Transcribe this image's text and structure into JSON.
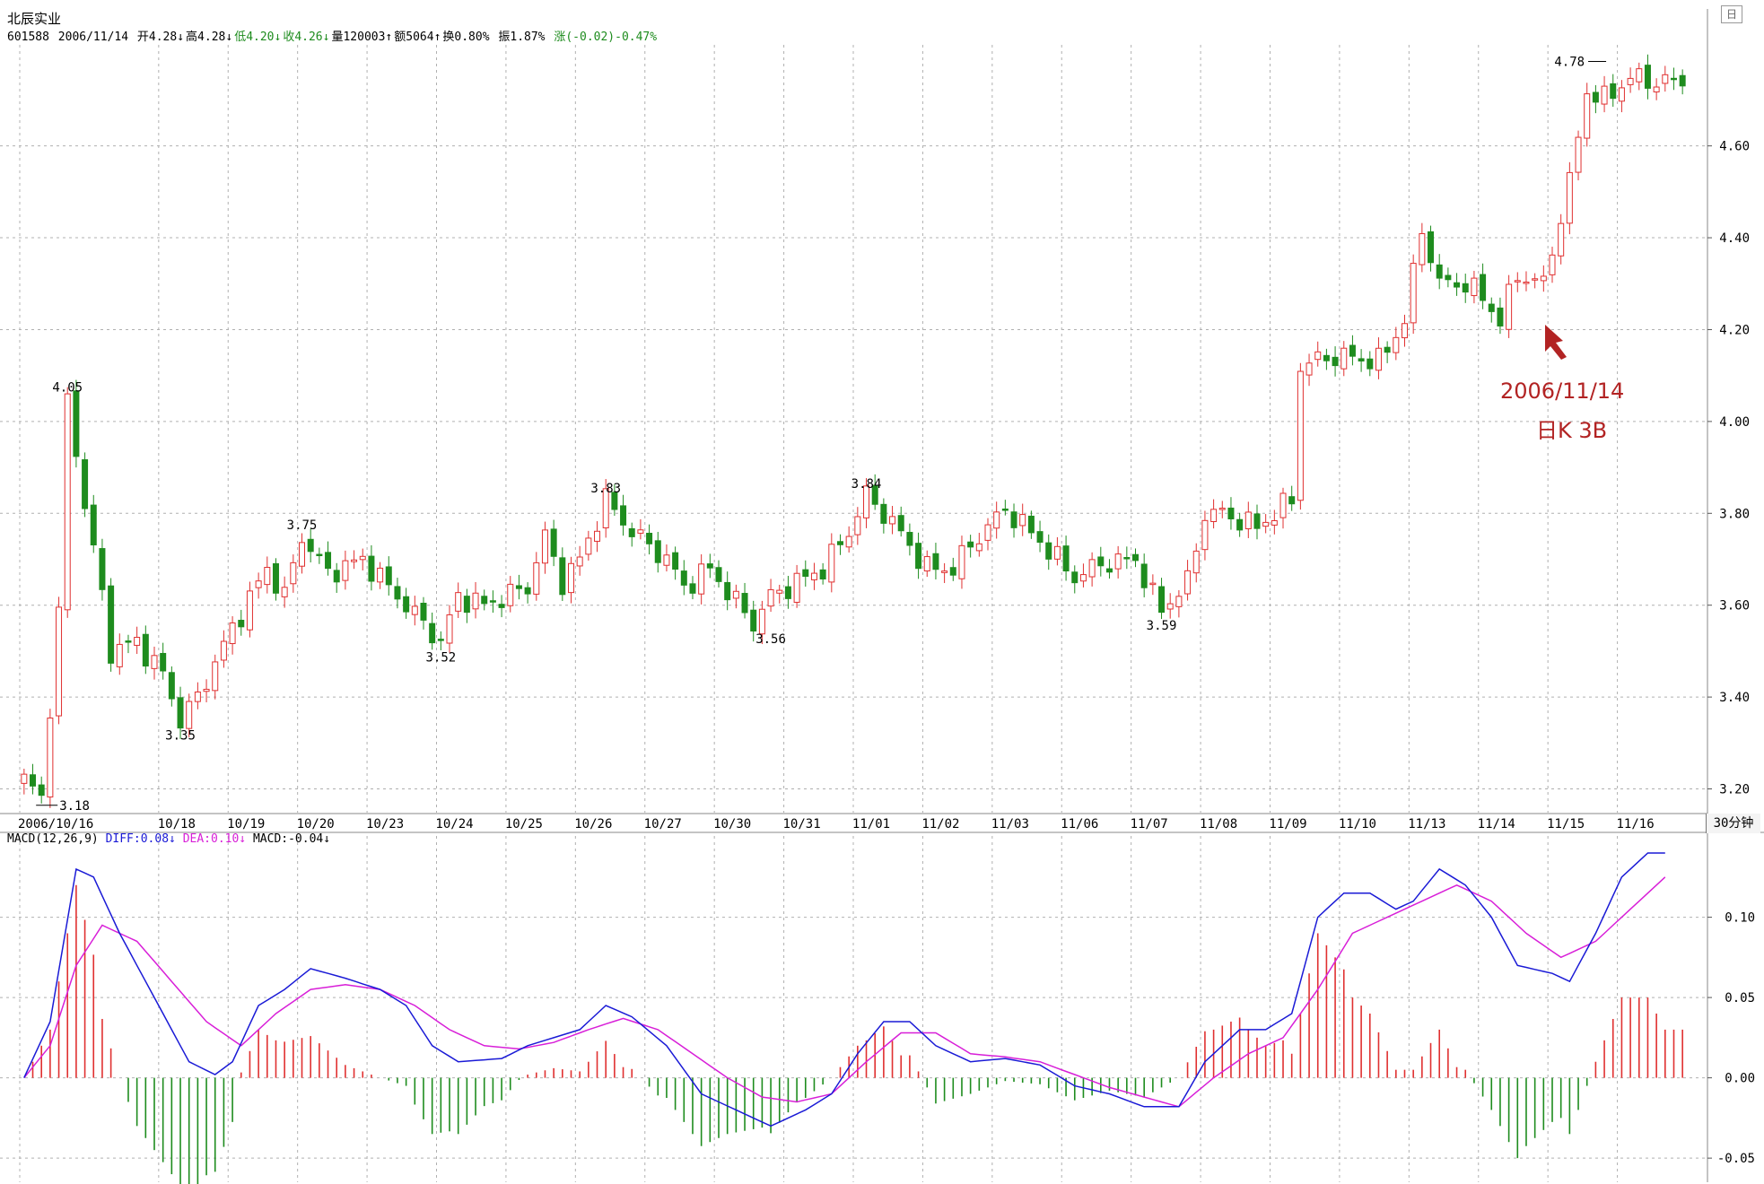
{
  "header": {
    "stock_name": "北辰实业",
    "quote": {
      "code": "601588",
      "date": "2006/11/14",
      "open": "开4.28↓",
      "high": "高4.28↓",
      "low": "低4.20↓",
      "close": "收4.26↓",
      "volume": "量120003↑",
      "amount": "额5064↑",
      "turnover": "换0.80%",
      "amplitude": "振1.87%",
      "change": "涨(-0.02)-0.47%"
    }
  },
  "period_button": "30分钟",
  "corner_button": "日",
  "macd_header": {
    "name": "MACD(12,26,9)",
    "diff": "DIFF:0.08↓",
    "dea": "DEA:0.10↓",
    "macd": "MACD:-0.04↓"
  },
  "annotation": {
    "date": "2006/11/14",
    "note": "日K 3B"
  },
  "colors": {
    "up": "#e03030",
    "down": "#1e8c1e",
    "diff": "#1a1ad6",
    "dea": "#d81fd8",
    "grid": "#b0b0b0",
    "annotation": "#b22323"
  },
  "chart_data": [
    {
      "type": "candlestick",
      "title": "北辰实业",
      "interval": "30分钟",
      "ylim": [
        3.16,
        4.82
      ],
      "y_ticks": [
        "3.20",
        "3.40",
        "3.60",
        "3.80",
        "4.00",
        "4.20",
        "4.40",
        "4.60"
      ],
      "x_labels": [
        "2006/10/16",
        "10/18",
        "10/19",
        "10/20",
        "10/23",
        "10/24",
        "10/25",
        "10/26",
        "10/27",
        "10/30",
        "10/31",
        "11/01",
        "11/02",
        "11/03",
        "11/06",
        "11/07",
        "11/08",
        "11/09",
        "11/10",
        "11/13",
        "11/14",
        "11/15",
        "11/16"
      ],
      "x_label_bar_index": [
        0,
        16,
        24,
        32,
        40,
        48,
        56,
        64,
        72,
        80,
        88,
        96,
        104,
        112,
        120,
        128,
        136,
        144,
        152,
        160,
        168,
        176,
        184
      ],
      "bar_count": 192,
      "price_anchors": [
        [
          0,
          3.22
        ],
        [
          2,
          3.18
        ],
        [
          4,
          3.58
        ],
        [
          5,
          4.05
        ],
        [
          7,
          3.82
        ],
        [
          9,
          3.62
        ],
        [
          10,
          3.5
        ],
        [
          13,
          3.52
        ],
        [
          16,
          3.45
        ],
        [
          18,
          3.35
        ],
        [
          20,
          3.4
        ],
        [
          24,
          3.55
        ],
        [
          28,
          3.68
        ],
        [
          30,
          3.62
        ],
        [
          32,
          3.75
        ],
        [
          35,
          3.67
        ],
        [
          39,
          3.7
        ],
        [
          43,
          3.62
        ],
        [
          48,
          3.52
        ],
        [
          50,
          3.62
        ],
        [
          53,
          3.6
        ],
        [
          58,
          3.64
        ],
        [
          60,
          3.75
        ],
        [
          62,
          3.65
        ],
        [
          64,
          3.7
        ],
        [
          67,
          3.83
        ],
        [
          70,
          3.76
        ],
        [
          74,
          3.7
        ],
        [
          76,
          3.64
        ],
        [
          79,
          3.68
        ],
        [
          81,
          3.63
        ],
        [
          84,
          3.56
        ],
        [
          86,
          3.62
        ],
        [
          89,
          3.65
        ],
        [
          92,
          3.68
        ],
        [
          95,
          3.76
        ],
        [
          97,
          3.84
        ],
        [
          100,
          3.78
        ],
        [
          104,
          3.68
        ],
        [
          107,
          3.68
        ],
        [
          109,
          3.73
        ],
        [
          113,
          3.81
        ],
        [
          117,
          3.74
        ],
        [
          121,
          3.66
        ],
        [
          124,
          3.69
        ],
        [
          128,
          3.7
        ],
        [
          130,
          3.62
        ],
        [
          131,
          3.59
        ],
        [
          134,
          3.65
        ],
        [
          136,
          3.8
        ],
        [
          138,
          3.8
        ],
        [
          142,
          3.77
        ],
        [
          146,
          3.83
        ],
        [
          147,
          4.12
        ],
        [
          150,
          4.14
        ],
        [
          153,
          4.14
        ],
        [
          156,
          4.13
        ],
        [
          159,
          4.22
        ],
        [
          161,
          4.42
        ],
        [
          163,
          4.3
        ],
        [
          166,
          4.3
        ],
        [
          168,
          4.27
        ],
        [
          170,
          4.22
        ],
        [
          172,
          4.32
        ],
        [
          175,
          4.3
        ],
        [
          178,
          4.52
        ],
        [
          180,
          4.72
        ],
        [
          182,
          4.7
        ],
        [
          185,
          4.75
        ],
        [
          187,
          4.74
        ]
      ],
      "labels": [
        {
          "bar": 2,
          "price": 3.18,
          "text": "3.18"
        },
        {
          "bar": 5,
          "price": 4.05,
          "text": "4.05"
        },
        {
          "bar": 18,
          "price": 3.35,
          "text": "3.35"
        },
        {
          "bar": 32,
          "price": 3.75,
          "text": "3.75"
        },
        {
          "bar": 48,
          "price": 3.52,
          "text": "3.52"
        },
        {
          "bar": 67,
          "price": 3.83,
          "text": "3.83"
        },
        {
          "bar": 86,
          "price": 3.56,
          "text": "3.56"
        },
        {
          "bar": 97,
          "price": 3.84,
          "text": "3.84"
        },
        {
          "bar": 131,
          "price": 3.59,
          "text": "3.59"
        },
        {
          "bar": 182,
          "price": 4.78,
          "text": "4.78"
        }
      ]
    },
    {
      "type": "line",
      "title": "MACD(12,26,9)",
      "ylim": [
        -0.065,
        0.145
      ],
      "y_ticks": [
        "-0.05",
        "0.00",
        "0.05",
        "0.10"
      ],
      "series": [
        {
          "name": "DIFF",
          "anchors": [
            [
              0,
              0.0
            ],
            [
              3,
              0.035
            ],
            [
              6,
              0.13
            ],
            [
              8,
              0.125
            ],
            [
              11,
              0.09
            ],
            [
              15,
              0.05
            ],
            [
              19,
              0.01
            ],
            [
              22,
              0.002
            ],
            [
              24,
              0.01
            ],
            [
              27,
              0.045
            ],
            [
              30,
              0.055
            ],
            [
              33,
              0.068
            ],
            [
              37,
              0.062
            ],
            [
              41,
              0.055
            ],
            [
              44,
              0.045
            ],
            [
              47,
              0.02
            ],
            [
              50,
              0.01
            ],
            [
              55,
              0.012
            ],
            [
              58,
              0.02
            ],
            [
              61,
              0.025
            ],
            [
              64,
              0.03
            ],
            [
              67,
              0.045
            ],
            [
              70,
              0.038
            ],
            [
              74,
              0.02
            ],
            [
              78,
              -0.01
            ],
            [
              82,
              -0.02
            ],
            [
              86,
              -0.03
            ],
            [
              90,
              -0.02
            ],
            [
              93,
              -0.01
            ],
            [
              96,
              0.015
            ],
            [
              99,
              0.035
            ],
            [
              102,
              0.035
            ],
            [
              105,
              0.02
            ],
            [
              109,
              0.01
            ],
            [
              113,
              0.012
            ],
            [
              117,
              0.008
            ],
            [
              121,
              -0.005
            ],
            [
              125,
              -0.01
            ],
            [
              129,
              -0.018
            ],
            [
              133,
              -0.018
            ],
            [
              136,
              0.01
            ],
            [
              140,
              0.03
            ],
            [
              143,
              0.03
            ],
            [
              146,
              0.04
            ],
            [
              149,
              0.1
            ],
            [
              152,
              0.115
            ],
            [
              155,
              0.115
            ],
            [
              158,
              0.105
            ],
            [
              160,
              0.11
            ],
            [
              163,
              0.13
            ],
            [
              166,
              0.12
            ],
            [
              169,
              0.1
            ],
            [
              172,
              0.07
            ],
            [
              176,
              0.065
            ],
            [
              178,
              0.06
            ],
            [
              181,
              0.09
            ],
            [
              184,
              0.125
            ],
            [
              187,
              0.14
            ],
            [
              189,
              0.14
            ]
          ]
        },
        {
          "name": "DEA",
          "anchors": [
            [
              0,
              0.0
            ],
            [
              3,
              0.02
            ],
            [
              6,
              0.07
            ],
            [
              9,
              0.095
            ],
            [
              13,
              0.085
            ],
            [
              17,
              0.06
            ],
            [
              21,
              0.035
            ],
            [
              25,
              0.02
            ],
            [
              29,
              0.04
            ],
            [
              33,
              0.055
            ],
            [
              37,
              0.058
            ],
            [
              41,
              0.055
            ],
            [
              45,
              0.045
            ],
            [
              49,
              0.03
            ],
            [
              53,
              0.02
            ],
            [
              57,
              0.018
            ],
            [
              61,
              0.022
            ],
            [
              65,
              0.03
            ],
            [
              69,
              0.037
            ],
            [
              73,
              0.03
            ],
            [
              77,
              0.015
            ],
            [
              81,
              0.0
            ],
            [
              85,
              -0.012
            ],
            [
              89,
              -0.015
            ],
            [
              93,
              -0.01
            ],
            [
              97,
              0.01
            ],
            [
              101,
              0.028
            ],
            [
              105,
              0.028
            ],
            [
              109,
              0.015
            ],
            [
              113,
              0.013
            ],
            [
              117,
              0.01
            ],
            [
              121,
              0.002
            ],
            [
              125,
              -0.006
            ],
            [
              129,
              -0.012
            ],
            [
              133,
              -0.018
            ],
            [
              137,
              0.0
            ],
            [
              141,
              0.015
            ],
            [
              145,
              0.025
            ],
            [
              149,
              0.055
            ],
            [
              153,
              0.09
            ],
            [
              157,
              0.1
            ],
            [
              161,
              0.11
            ],
            [
              165,
              0.12
            ],
            [
              169,
              0.11
            ],
            [
              173,
              0.09
            ],
            [
              177,
              0.075
            ],
            [
              181,
              0.085
            ],
            [
              185,
              0.105
            ],
            [
              189,
              0.125
            ]
          ]
        }
      ],
      "macd_hist": "2 × (DIFF − DEA), red above 0, green below 0"
    }
  ]
}
